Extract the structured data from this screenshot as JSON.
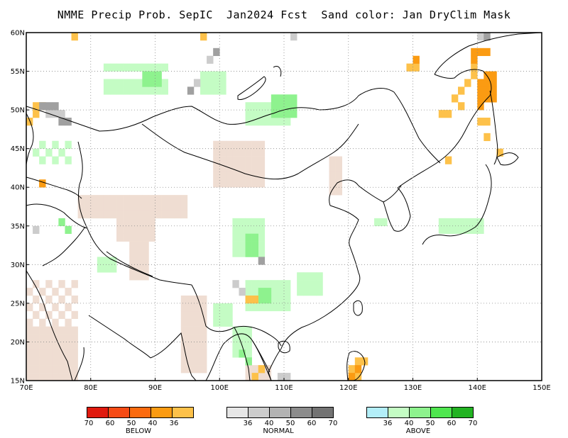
{
  "title": "NMME Precip Prob. SepIC  Jan2024 Fcst  Sand color: Jan DryClim Mask",
  "map": {
    "lon_range": [
      70,
      150
    ],
    "lat_range": [
      15,
      60
    ],
    "lon_ticks": [
      "70E",
      "80E",
      "90E",
      "100E",
      "110E",
      "120E",
      "130E",
      "140E",
      "150E"
    ],
    "lat_ticks": [
      "15N",
      "20N",
      "25N",
      "30N",
      "35N",
      "40N",
      "45N",
      "50N",
      "55N",
      "60N"
    ],
    "grid": "dotted"
  },
  "legend": {
    "below": {
      "title": "BELOW",
      "colors": [
        "#e01a0e",
        "#f64b15",
        "#fb6a0e",
        "#fb9b12",
        "#fdc14a"
      ],
      "labels": [
        "70",
        "60",
        "50",
        "40",
        "36"
      ]
    },
    "normal": {
      "title": "NORMAL",
      "colors": [
        "#e6e6e6",
        "#cccccc",
        "#b3b3b3",
        "#8c8c8c",
        "#737373"
      ],
      "labels": [
        "36",
        "40",
        "50",
        "60",
        "70"
      ]
    },
    "above": {
      "title": "ABOVE",
      "colors": [
        "#b3eef8",
        "#c4fcc4",
        "#8ef28e",
        "#4fe64f",
        "#22b322"
      ],
      "labels": [
        "36",
        "40",
        "50",
        "60",
        "70"
      ]
    }
  },
  "colors": {
    "sand": "#efddd2",
    "above_light": "#c4fcc4",
    "above_med": "#8ef28e",
    "below_light": "#fdc14a",
    "below_med": "#fb9b12",
    "normal_light": "#cccccc",
    "normal_med": "#a0a0a0"
  }
}
